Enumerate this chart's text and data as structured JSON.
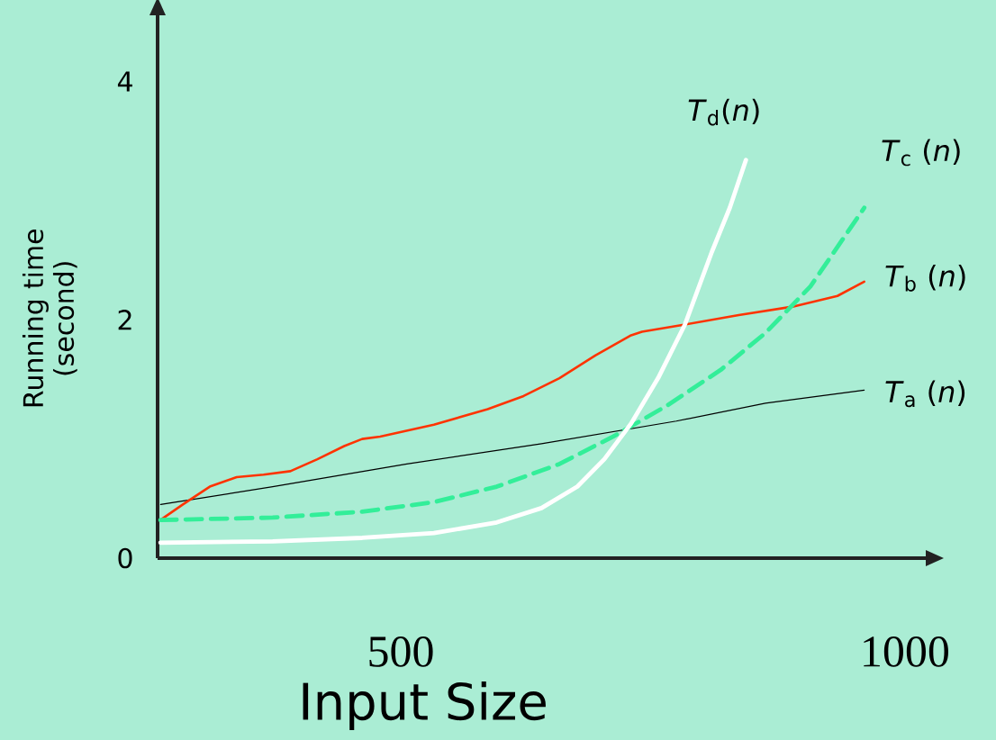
{
  "chart_data": {
    "type": "line",
    "xlabel": "Input Size",
    "ylabel": "Running time (second)",
    "xlim": [
      260,
      1020
    ],
    "ylim": [
      0,
      4.57
    ],
    "xticks": [
      500,
      1000
    ],
    "yticks": [
      0,
      2,
      4
    ],
    "grid": false,
    "legend": false,
    "marker": "none",
    "series": [
      {
        "name": "*T*$_{a}$ (*n*)",
        "color": "#000000",
        "line_style": "solid",
        "x": [
          263,
          373.6,
          506,
          639,
          772,
          860,
          957.5
        ],
        "values": [
          0.45,
          0.6,
          0.79,
          0.96,
          1.15,
          1.3,
          1.41
        ]
      },
      {
        "name": "*T*$_{b}$ (*n*)",
        "color": "#ff3300",
        "line_style": "solid",
        "x": [
          262.8,
          284.9,
          311.5,
          338.0,
          364.6,
          391.1,
          417.7,
          444.2,
          461.9,
          479.6,
          532.7,
          585.8,
          621.2,
          656.6,
          692.0,
          727.4,
          738.1,
          780.5,
          833.6,
          886.7,
          931.0,
          957.5
        ],
        "values": [
          0.32,
          0.45,
          0.6,
          0.68,
          0.7,
          0.73,
          0.83,
          0.94,
          1.0,
          1.02,
          1.12,
          1.25,
          1.36,
          1.51,
          1.7,
          1.87,
          1.9,
          1.96,
          2.04,
          2.11,
          2.2,
          2.32
        ]
      },
      {
        "name": "*T*$_{c}$ (*n*)",
        "color": "#33ee99",
        "line_style": "dashed",
        "x": [
          262.8,
          373.6,
          461.9,
          532.7,
          594.7,
          656.6,
          709.7,
          762.8,
          815.9,
          860.1,
          904.4,
          957.5
        ],
        "values": [
          0.32,
          0.34,
          0.39,
          0.47,
          0.6,
          0.79,
          1.02,
          1.28,
          1.58,
          1.89,
          2.28,
          2.94
        ]
      },
      {
        "name": "*T*$_{d}$(*n*)",
        "color": "#ffffff",
        "line_style": "solid",
        "x": [
          262.8,
          373.6,
          461.9,
          532.7,
          594.7,
          638.9,
          674.3,
          700.9,
          727.4,
          754.0,
          780.5,
          807.1,
          824.8,
          840.7
        ],
        "values": [
          0.13,
          0.14,
          0.17,
          0.21,
          0.3,
          0.42,
          0.6,
          0.83,
          1.13,
          1.51,
          1.96,
          2.57,
          2.94,
          3.34
        ]
      }
    ]
  }
}
